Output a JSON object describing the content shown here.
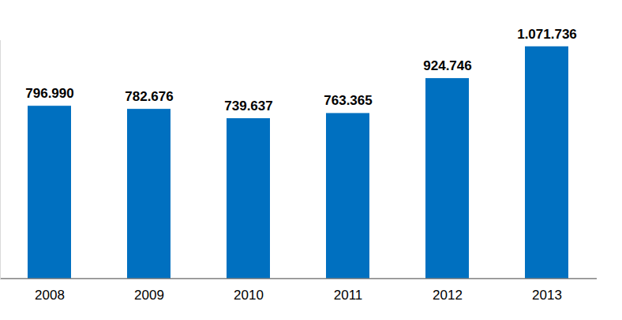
{
  "chart_data": {
    "type": "bar",
    "categories": [
      "2008",
      "2009",
      "2010",
      "2011",
      "2012",
      "2013"
    ],
    "values": [
      796990,
      782676,
      739637,
      763365,
      924746,
      1071736
    ],
    "value_labels": [
      "796.990",
      "782.676",
      "739.637",
      "763.365",
      "924.746",
      "1.071.736"
    ],
    "color": "#0070c0",
    "ylim": [
      0,
      1100000
    ],
    "data_labels": true,
    "tick_labels": "x"
  }
}
